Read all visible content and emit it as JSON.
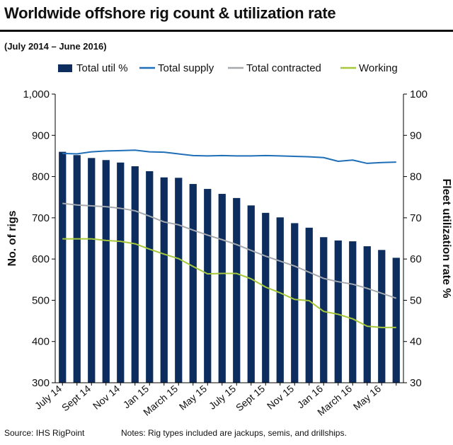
{
  "header": {
    "title": "Worldwide offshore rig count & utilization rate",
    "subtitle": "(July 2014 – June 2016)"
  },
  "footer": {
    "source": "Source: IHS RigPoint",
    "notes": "Notes: Rig types included are jackups, semis, and drillships."
  },
  "colors": {
    "bars": "#0d2d5f",
    "supply": "#1f6fb8",
    "contracted": "#a5a9ad",
    "working": "#a6c83a",
    "axis": "#000000"
  },
  "chart_data": {
    "type": "bar",
    "title": "Worldwide offshore rig count & utilization rate",
    "subtitle": "(July 2014 – June 2016)",
    "ylabel": "No. of rigs",
    "ylabel_right": "Fleet utilization rate %",
    "ylim": [
      300,
      1000
    ],
    "ylim_right": [
      30,
      100
    ],
    "yticks": [
      "300",
      "400",
      "500",
      "600",
      "700",
      "800",
      "900",
      "1,000"
    ],
    "yticks_right": [
      "30",
      "40",
      "50",
      "60",
      "70",
      "80",
      "90",
      "100"
    ],
    "xtick_labels": [
      "July 14",
      "Sept 14",
      "Nov 14",
      "Jan 15",
      "March 15",
      "May 15",
      "July 15",
      "Sept 15",
      "Nov 15",
      "Jan 16",
      "March 16",
      "May 16"
    ],
    "categories": [
      "Jul 2014",
      "Aug 2014",
      "Sep 2014",
      "Oct 2014",
      "Nov 2014",
      "Dec 2014",
      "Jan 2015",
      "Feb 2015",
      "Mar 2015",
      "Apr 2015",
      "May 2015",
      "Jun 2015",
      "Jul 2015",
      "Aug 2015",
      "Sep 2015",
      "Oct 2015",
      "Nov 2015",
      "Dec 2015",
      "Jan 2016",
      "Feb 2016",
      "Mar 2016",
      "Apr 2016",
      "May 2016",
      "Jun 2016"
    ],
    "grid": false,
    "legend": "top",
    "series": [
      {
        "name": "Total util %",
        "kind": "bar",
        "axis": "right",
        "values": [
          86,
          85.2,
          84.5,
          84,
          83.4,
          82.5,
          81.3,
          79.8,
          79.7,
          78.2,
          77,
          75.8,
          74.8,
          73,
          71.2,
          70.1,
          68.7,
          67.6,
          65.3,
          64.5,
          64.3,
          63.1,
          62.2,
          60.3
        ]
      },
      {
        "name": "Total supply",
        "kind": "line",
        "axis": "left",
        "values": [
          856,
          855,
          860,
          862,
          863,
          864,
          860,
          859,
          855,
          851,
          850,
          851,
          850,
          850,
          851,
          850,
          849,
          848,
          846,
          837,
          840,
          832,
          834,
          835
        ]
      },
      {
        "name": "Total contracted",
        "kind": "line",
        "axis": "left",
        "values": [
          735,
          731,
          729,
          727,
          723,
          717,
          704,
          690,
          683,
          670,
          658,
          647,
          635,
          621,
          607,
          595,
          583,
          568,
          553,
          545,
          539,
          529,
          517,
          505
        ]
      },
      {
        "name": "Working",
        "kind": "line",
        "axis": "left",
        "values": [
          649,
          649,
          649,
          645,
          643,
          637,
          624,
          612,
          601,
          582,
          564,
          565,
          565,
          552,
          532,
          518,
          502,
          499,
          473,
          466,
          455,
          437,
          434,
          434
        ]
      }
    ]
  }
}
